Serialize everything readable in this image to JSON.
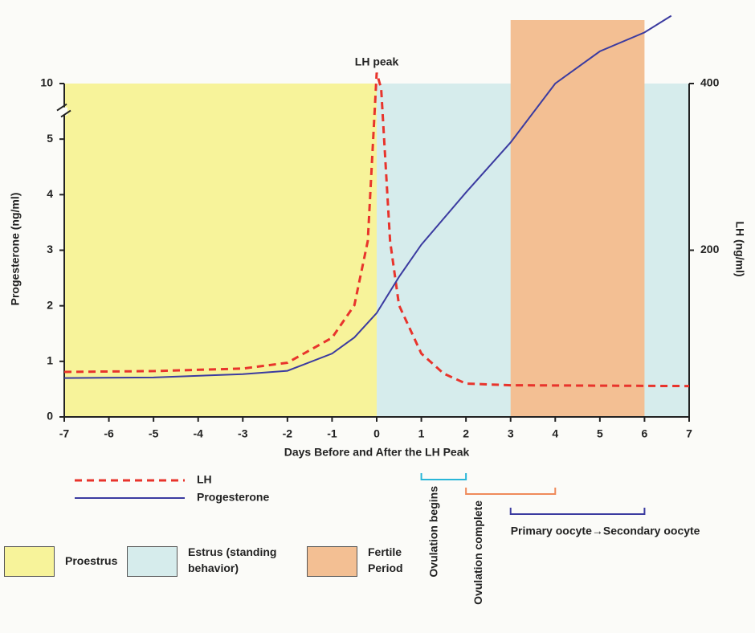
{
  "chart_data": {
    "type": "line",
    "x_label": "Days Before and After the LH Peak",
    "y_label": "Progesterone (ng/ml)",
    "y2_label": "LH (ng/ml)",
    "annotation": "LH peak",
    "xlim": [
      -7,
      7
    ],
    "xticks": [
      -7,
      -6,
      -5,
      -4,
      -3,
      -2,
      -1,
      0,
      1,
      2,
      3,
      4,
      5,
      6,
      7
    ],
    "ylim": [
      0,
      10
    ],
    "yticks": [
      0,
      1,
      2,
      3,
      4,
      5,
      10
    ],
    "axis_break": [
      5,
      10
    ],
    "y2lim": [
      0,
      400
    ],
    "y2ticks": [
      200,
      400
    ],
    "series": [
      {
        "name": "LH",
        "color": "#e8342c",
        "dashed": true,
        "axis": "y2",
        "x": [
          -7,
          -5,
          -3,
          -2,
          -1,
          -0.5,
          -0.2,
          0,
          0.1,
          0.3,
          0.5,
          1,
          1.5,
          2,
          3,
          7
        ],
        "values": [
          54,
          55,
          58,
          65,
          95,
          134,
          211,
          413,
          394,
          211,
          134,
          76,
          52,
          40,
          38,
          37
        ]
      },
      {
        "name": "Progesterone",
        "color": "#3b3ba0",
        "dashed": false,
        "x": [
          -7,
          -5,
          -3,
          -2,
          -1,
          -0.5,
          0,
          0.5,
          1,
          2,
          3,
          4,
          5,
          6,
          6.6
        ],
        "values": [
          0.7,
          0.71,
          0.77,
          0.83,
          1.14,
          1.43,
          1.87,
          2.52,
          3.1,
          4.04,
          4.94,
          10,
          12.9,
          14.6,
          16.1
        ]
      }
    ],
    "regions": [
      {
        "name": "Proestrus",
        "color": "#f7f39a",
        "start": -7,
        "end": 0
      },
      {
        "name": "Estrus (standing behavior)",
        "color": "#d6ecec",
        "start": 0,
        "end": 7
      },
      {
        "name": "Fertile Period",
        "color": "#f3bf93",
        "start": 3,
        "end": 6
      }
    ],
    "phases": [
      {
        "label": "Ovulation begins",
        "color": "#29b6d8",
        "start": 1,
        "end": 2,
        "orientation": "vertical"
      },
      {
        "label": "Ovulation complete",
        "color": "#ef8a5a",
        "start": 2,
        "end": 4,
        "orientation": "vertical"
      },
      {
        "label": "Primary oocyte→Secondary oocyte",
        "color": "#3b3ba0",
        "start": 3,
        "end": 6,
        "orientation": "horizontal"
      }
    ]
  }
}
